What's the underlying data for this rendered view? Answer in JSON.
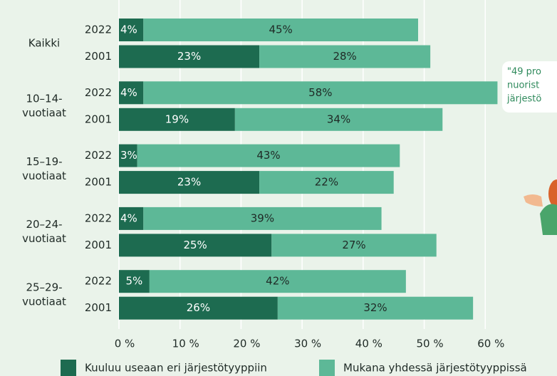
{
  "chart_data": {
    "type": "stacked-hbar",
    "groups": [
      [
        "Kaikki"
      ],
      [
        "10–14-",
        "vuotiaat"
      ],
      [
        "15–19-",
        "vuotiaat"
      ],
      [
        "20–24-",
        "vuotiaat"
      ],
      [
        "25–29-",
        "vuotiaat"
      ]
    ],
    "categories": [
      "2022",
      "2001",
      "2022",
      "2001",
      "2022",
      "2001",
      "2022",
      "2001",
      "2022",
      "2001"
    ],
    "series": [
      {
        "name": "Kuuluu useaan eri järjestötyyppiin",
        "color": "#1d6b50",
        "values": [
          4,
          23,
          4,
          19,
          3,
          23,
          4,
          25,
          5,
          26
        ],
        "value_labels": [
          "4%",
          "23%",
          "4%",
          "19%",
          "3%",
          "23%",
          "4%",
          "25%",
          "5%",
          "26%"
        ]
      },
      {
        "name": "Mukana yhdessä järjestötyyppissä",
        "color": "#5db897",
        "values": [
          45,
          28,
          58,
          34,
          43,
          22,
          39,
          27,
          42,
          32
        ],
        "value_labels": [
          "45%",
          "28%",
          "58%",
          "34%",
          "43%",
          "22%",
          "39%",
          "27%",
          "42%",
          "32%"
        ]
      }
    ],
    "xlim": [
      0,
      70
    ],
    "xticks": [
      {
        "value": 0,
        "label": "0 %"
      },
      {
        "value": 10,
        "label": "10 %"
      },
      {
        "value": 20,
        "label": "20 %"
      },
      {
        "value": 30,
        "label": "30 %"
      },
      {
        "value": 40,
        "label": "40 %"
      },
      {
        "value": 50,
        "label": "50 %"
      },
      {
        "value": 60,
        "label": "60 %"
      }
    ],
    "grid": true,
    "annotation": [
      "\"49 pro",
      "nuorist",
      "järjestö"
    ]
  }
}
